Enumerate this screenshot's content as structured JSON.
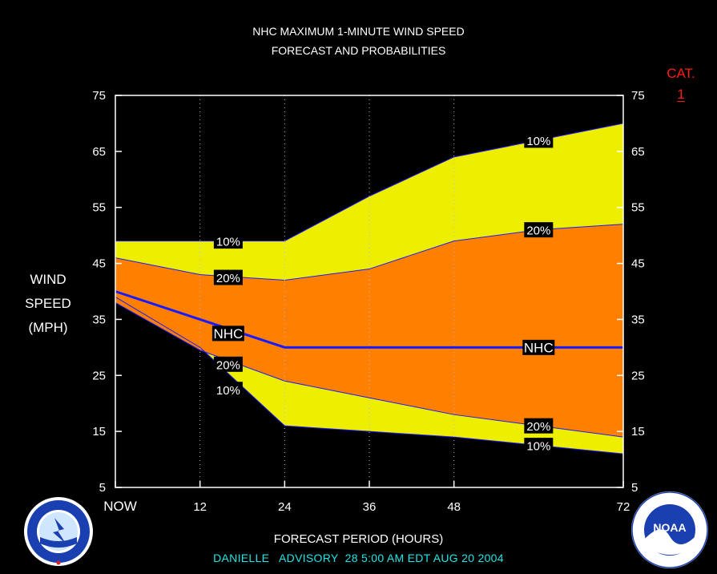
{
  "chart_data": {
    "type": "area",
    "title_line1": "NHC MAXIMUM 1-MINUTE WIND SPEED",
    "title_line2": "FORECAST AND PROBABILITIES",
    "ylabel_lines": [
      "WIND",
      "SPEED",
      "(MPH)"
    ],
    "xlabel": "FORECAST PERIOD (HOURS)",
    "x_ticks": [
      {
        "value": 0,
        "label": "NOW"
      },
      {
        "value": 12,
        "label": "12"
      },
      {
        "value": 24,
        "label": "24"
      },
      {
        "value": 36,
        "label": "36"
      },
      {
        "value": 48,
        "label": "48"
      },
      {
        "value": 72,
        "label": "72"
      }
    ],
    "y_ticks": [
      5,
      15,
      25,
      35,
      45,
      55,
      65,
      75
    ],
    "xlim": [
      0,
      72
    ],
    "ylim": [
      5,
      75
    ],
    "x": [
      0,
      12,
      24,
      36,
      48,
      60,
      72
    ],
    "bands": [
      {
        "name": "10%",
        "color": "#eeee00",
        "upper": [
          49,
          49,
          49,
          57,
          64,
          67,
          70
        ],
        "lower": [
          39,
          30,
          16,
          15,
          14,
          12.5,
          11
        ]
      },
      {
        "name": "20%",
        "color": "#ff8000",
        "upper": [
          46,
          43,
          42,
          44,
          49,
          51,
          52
        ],
        "lower": [
          38,
          29.5,
          24,
          21,
          18,
          16,
          14
        ]
      }
    ],
    "nhc_line": {
      "name": "NHC",
      "color": "#1a1aff",
      "values": [
        40,
        35,
        30,
        30,
        30,
        30,
        30
      ]
    },
    "band_labels": [
      {
        "text": "10%",
        "x": 16,
        "y": 49
      },
      {
        "text": "20%",
        "x": 16,
        "y": 42.5
      },
      {
        "text": "NHC",
        "x": 16,
        "y": 32.5
      },
      {
        "text": "20%",
        "x": 16,
        "y": 27
      },
      {
        "text": "10%",
        "x": 16,
        "y": 22.5
      },
      {
        "text": "10%",
        "x": 60,
        "y": 67
      },
      {
        "text": "20%",
        "x": 60,
        "y": 51
      },
      {
        "text": "NHC",
        "x": 60,
        "y": 30
      },
      {
        "text": "20%",
        "x": 60,
        "y": 16
      },
      {
        "text": "10%",
        "x": 60,
        "y": 12.5
      }
    ],
    "grid": "vertical-dotted",
    "colors": {
      "background": "#000000",
      "ten_pct": "#eeee00",
      "twenty_pct": "#ff8000",
      "nhc": "#1a1aff",
      "axis": "#ffffff"
    }
  },
  "category": {
    "label": "CAT.",
    "value": "1",
    "color": "#ff1a1a"
  },
  "advisory": "DANIELLE   ADVISORY  28 5:00 AM EDT AUG 20 2004",
  "logos": {
    "left": "nws-logo",
    "right": "noaa-logo"
  }
}
